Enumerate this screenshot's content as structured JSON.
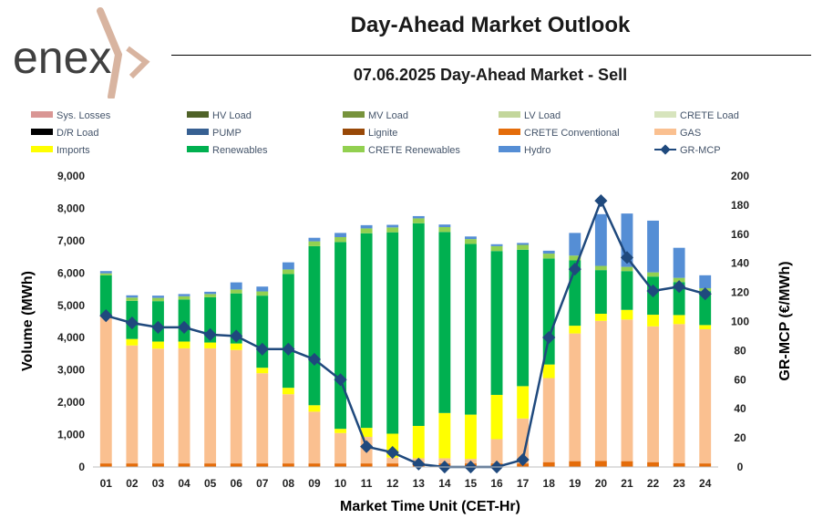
{
  "header": {
    "logo_text": "enex",
    "title": "Day-Ahead Market Outlook",
    "subtitle": "07.06.2025  Day-Ahead Market - Sell"
  },
  "chart_data": {
    "type": "bar",
    "stacked": true,
    "categories": [
      "01",
      "02",
      "03",
      "04",
      "05",
      "06",
      "07",
      "08",
      "09",
      "10",
      "11",
      "12",
      "13",
      "14",
      "15",
      "16",
      "17",
      "18",
      "19",
      "20",
      "21",
      "22",
      "23",
      "24"
    ],
    "xlabel": "Market Time Unit (CET-Hr)",
    "ylabel": "Volume (MWh)",
    "y2label": "GR-MCP (€/MWh)",
    "ylim": [
      0,
      9000
    ],
    "y_ticks": [
      0,
      1000,
      2000,
      3000,
      4000,
      5000,
      6000,
      7000,
      8000,
      9000
    ],
    "y_tick_labels": [
      "0",
      "1,000",
      "2,000",
      "3,000",
      "4,000",
      "5,000",
      "6,000",
      "7,000",
      "8,000",
      "9,000"
    ],
    "y2lim": [
      0,
      200
    ],
    "y2_ticks": [
      0,
      20,
      40,
      60,
      80,
      100,
      120,
      140,
      160,
      180,
      200
    ],
    "legend": [
      {
        "name": "Sys. Losses",
        "color": "#d99694",
        "kind": "bar"
      },
      {
        "name": "HV Load",
        "color": "#4f6228",
        "kind": "bar"
      },
      {
        "name": "MV Load",
        "color": "#77933c",
        "kind": "bar"
      },
      {
        "name": "LV Load",
        "color": "#c3d69b",
        "kind": "bar"
      },
      {
        "name": "CRETE Load",
        "color": "#d7e4bd",
        "kind": "bar"
      },
      {
        "name": "D/R Load",
        "color": "#000000",
        "kind": "bar"
      },
      {
        "name": "PUMP",
        "color": "#376092",
        "kind": "bar"
      },
      {
        "name": "Lignite",
        "color": "#984807",
        "kind": "bar"
      },
      {
        "name": "CRETE Conventional",
        "color": "#e46c0a",
        "kind": "bar"
      },
      {
        "name": "GAS",
        "color": "#fac090",
        "kind": "bar"
      },
      {
        "name": "Imports",
        "color": "#ffff00",
        "kind": "bar"
      },
      {
        "name": "Renewables",
        "color": "#00b050",
        "kind": "bar"
      },
      {
        "name": "CRETE Renewables",
        "color": "#92d050",
        "kind": "bar"
      },
      {
        "name": "Hydro",
        "color": "#558ed5",
        "kind": "bar"
      },
      {
        "name": "GR-MCP",
        "color": "#1f497d",
        "kind": "line"
      }
    ],
    "series": [
      {
        "name": "CRETE Conventional",
        "color": "#e46c0a",
        "values": [
          110,
          110,
          110,
          110,
          110,
          110,
          110,
          110,
          110,
          110,
          110,
          110,
          110,
          110,
          110,
          110,
          110,
          150,
          180,
          190,
          180,
          150,
          120,
          110
        ]
      },
      {
        "name": "GAS",
        "color": "#fac090",
        "values": [
          4590,
          3650,
          3550,
          3560,
          3560,
          3510,
          2790,
          2140,
          1600,
          940,
          820,
          180,
          160,
          160,
          140,
          750,
          1390,
          2600,
          3950,
          4330,
          4380,
          4200,
          4300,
          4150
        ]
      },
      {
        "name": "Imports",
        "color": "#ffff00",
        "values": [
          0,
          200,
          220,
          210,
          180,
          200,
          170,
          200,
          200,
          130,
          280,
          740,
          1000,
          1400,
          1370,
          1370,
          1000,
          420,
          240,
          220,
          300,
          360,
          280,
          130
        ]
      },
      {
        "name": "Renewables",
        "color": "#00b050",
        "values": [
          1230,
          1180,
          1250,
          1300,
          1400,
          1550,
          2230,
          3520,
          4920,
          5780,
          6020,
          6230,
          6270,
          5600,
          5280,
          4450,
          4220,
          3280,
          2020,
          1350,
          1200,
          1180,
          1020,
          1050
        ]
      },
      {
        "name": "CRETE Renewables",
        "color": "#92d050",
        "values": [
          60,
          100,
          100,
          100,
          100,
          120,
          130,
          140,
          150,
          150,
          150,
          150,
          150,
          150,
          150,
          150,
          150,
          150,
          150,
          130,
          130,
          130,
          130,
          90
        ]
      },
      {
        "name": "Hydro",
        "color": "#558ed5",
        "values": [
          70,
          70,
          70,
          70,
          70,
          220,
          150,
          220,
          110,
          130,
          100,
          80,
          70,
          80,
          80,
          60,
          60,
          90,
          700,
          1600,
          1650,
          1600,
          930,
          400
        ]
      }
    ],
    "line": {
      "name": "GR-MCP",
      "color": "#1f497d",
      "axis": "right",
      "values": [
        104,
        99,
        96,
        96,
        91,
        90,
        81,
        81,
        74,
        60,
        14,
        10,
        2,
        0,
        0,
        0,
        5,
        89,
        136,
        183,
        144,
        121,
        124,
        119
      ]
    }
  }
}
